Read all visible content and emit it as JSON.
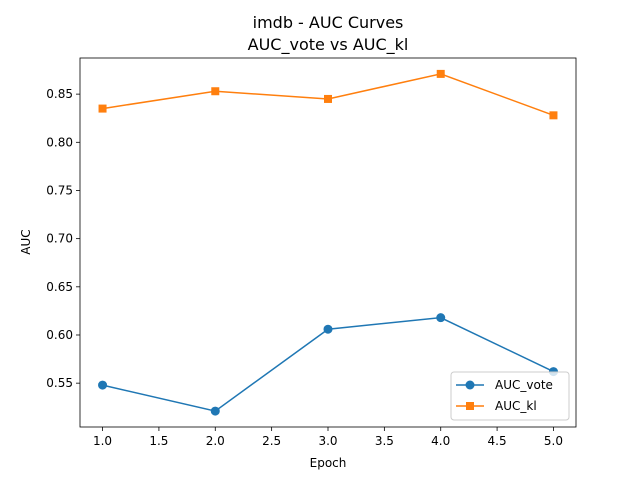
{
  "chart_data": {
    "type": "line",
    "title": "imdb - AUC Curves",
    "subtitle": "AUC_vote vs AUC_kl",
    "xlabel": "Epoch",
    "ylabel": "AUC",
    "x": [
      1,
      2,
      3,
      4,
      5
    ],
    "xlim": [
      0.8,
      5.2
    ],
    "ylim": [
      0.5045,
      0.8875
    ],
    "xticks": [
      "1.0",
      "1.5",
      "2.0",
      "2.5",
      "3.0",
      "3.5",
      "4.0",
      "4.5",
      "5.0"
    ],
    "yticks": [
      "0.55",
      "0.60",
      "0.65",
      "0.70",
      "0.75",
      "0.80",
      "0.85"
    ],
    "grid": false,
    "legend_position": "lower-right",
    "series": [
      {
        "name": "AUC_vote",
        "values": [
          0.548,
          0.521,
          0.606,
          0.618,
          0.562
        ],
        "color": "#1f77b4",
        "marker": "circle"
      },
      {
        "name": "AUC_kl",
        "values": [
          0.835,
          0.853,
          0.845,
          0.871,
          0.828
        ],
        "color": "#ff7f0e",
        "marker": "square"
      }
    ]
  }
}
